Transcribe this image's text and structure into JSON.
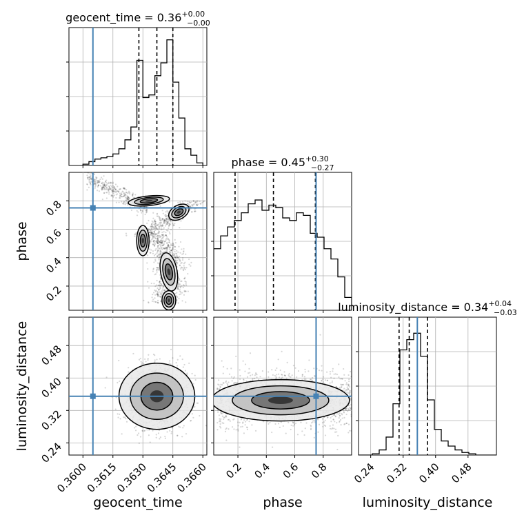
{
  "colors": {
    "truth": "#4682b4",
    "hist": "#000000",
    "grid": "#b0b0b0",
    "density": "#000000"
  },
  "chart_data": {
    "type": "corner",
    "parameters": [
      "geocent_time",
      "phase",
      "luminosity_distance"
    ],
    "truths": [
      0.3605,
      0.75,
      0.355
    ],
    "ranges": [
      [
        0.3593,
        0.3662
      ],
      [
        0.03,
        1.0
      ],
      [
        0.21,
        0.55
      ]
    ],
    "ticks": {
      "geocent_time": [
        "0.3600",
        "0.3615",
        "0.3630",
        "0.3645",
        "0.3660"
      ],
      "phase": [
        "0.2",
        "0.4",
        "0.6",
        "0.8"
      ],
      "luminosity_distance": [
        "0.24",
        "0.32",
        "0.40",
        "0.48"
      ]
    },
    "tick_values": {
      "geocent_time": [
        0.36,
        0.3615,
        0.363,
        0.3645,
        0.366
      ],
      "phase": [
        0.2,
        0.4,
        0.6,
        0.8
      ],
      "luminosity_distance": [
        0.24,
        0.32,
        0.4,
        0.48
      ]
    },
    "titles": [
      {
        "param": "geocent_time",
        "median": "0.36",
        "plus": "+0.00",
        "minus": "−0.00"
      },
      {
        "param": "phase",
        "median": "0.45",
        "plus": "+0.30",
        "minus": "−0.27"
      },
      {
        "param": "luminosity_distance",
        "median": "0.34",
        "plus": "+0.04",
        "minus": "−0.03"
      }
    ],
    "quantiles": {
      "geocent_time": [
        0.3628,
        0.3637,
        0.3645
      ],
      "phase": [
        0.18,
        0.45,
        0.745
      ],
      "luminosity_distance": [
        0.31,
        0.335,
        0.38
      ]
    },
    "histograms": {
      "geocent_time": {
        "edges": [
          0.36,
          0.3603,
          0.3606,
          0.3609,
          0.3612,
          0.3615,
          0.3618,
          0.3621,
          0.3624,
          0.3627,
          0.363,
          0.3633,
          0.3636,
          0.3639,
          0.3642,
          0.3645,
          0.3648,
          0.3651,
          0.3654,
          0.3657,
          0.366
        ],
        "heights": [
          0.01,
          0.03,
          0.05,
          0.06,
          0.07,
          0.09,
          0.13,
          0.2,
          0.3,
          0.82,
          0.53,
          0.55,
          0.7,
          0.8,
          0.98,
          0.65,
          0.37,
          0.13,
          0.08,
          0.02
        ]
      },
      "phase": {
        "edges": [
          0.03,
          0.0785,
          0.127,
          0.1755,
          0.224,
          0.2725,
          0.321,
          0.3695,
          0.418,
          0.4665,
          0.515,
          0.5635,
          0.612,
          0.6605,
          0.709,
          0.7575,
          0.806,
          0.8545,
          0.903,
          0.9515,
          1.0
        ],
        "heights": [
          0.48,
          0.58,
          0.65,
          0.7,
          0.76,
          0.83,
          0.86,
          0.78,
          0.82,
          0.8,
          0.72,
          0.7,
          0.76,
          0.74,
          0.6,
          0.57,
          0.48,
          0.4,
          0.26,
          0.1
        ]
      },
      "luminosity_distance": {
        "edges": [
          0.21,
          0.227,
          0.244,
          0.261,
          0.278,
          0.295,
          0.312,
          0.329,
          0.346,
          0.363,
          0.38,
          0.397,
          0.414,
          0.431,
          0.448,
          0.465,
          0.482,
          0.499,
          0.516,
          0.533,
          0.55
        ],
        "heights": [
          0.0,
          0.0,
          0.01,
          0.04,
          0.14,
          0.4,
          0.82,
          0.9,
          0.95,
          0.77,
          0.43,
          0.2,
          0.11,
          0.07,
          0.04,
          0.02,
          0.01,
          0.0,
          0.0,
          0.0
        ]
      }
    }
  }
}
